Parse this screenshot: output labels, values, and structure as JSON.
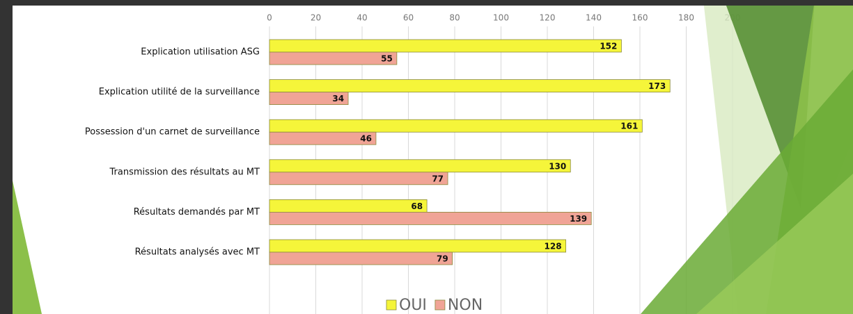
{
  "chart_data": {
    "type": "bar",
    "orientation": "horizontal",
    "categories": [
      "Explication utilisation ASG",
      "Explication utilité de la surveillance",
      "Possession d'un carnet de surveillance",
      "Transmission des résultats au MT",
      "Résultats demandés par MT",
      "Résultats analysés avec MT"
    ],
    "series": [
      {
        "name": "OUI",
        "color": "#f5f53a",
        "values": [
          152,
          173,
          161,
          130,
          68,
          128
        ]
      },
      {
        "name": "NON",
        "color": "#f0a496",
        "values": [
          55,
          34,
          46,
          77,
          139,
          79
        ]
      }
    ],
    "xlim": [
      0,
      200
    ],
    "xticks": [
      0,
      20,
      40,
      60,
      80,
      100,
      120,
      140,
      160,
      180,
      200
    ],
    "grid": true,
    "legend": "bottom"
  }
}
